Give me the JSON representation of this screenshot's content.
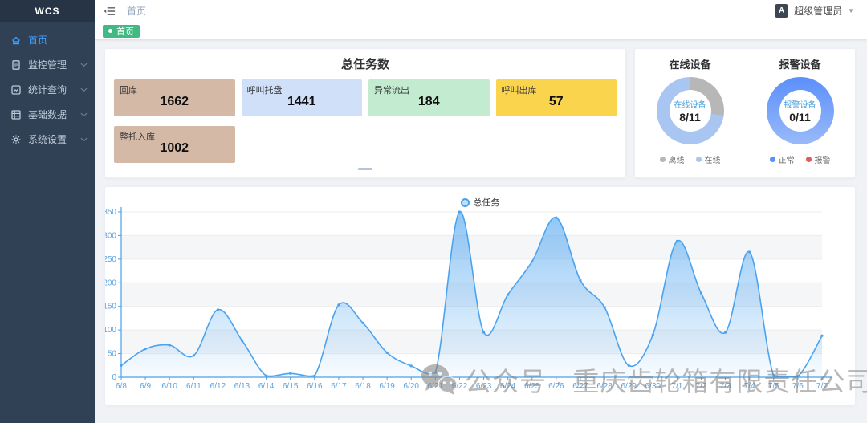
{
  "sidebar": {
    "logo": "WCS",
    "items": [
      {
        "id": "home",
        "label": "首页",
        "icon": "home-icon",
        "active": true,
        "has_children": false
      },
      {
        "id": "monitoring",
        "label": "监控管理",
        "icon": "monitor-icon",
        "active": false,
        "has_children": true
      },
      {
        "id": "statistics",
        "label": "统计查询",
        "icon": "stats-icon",
        "active": false,
        "has_children": true
      },
      {
        "id": "base-data",
        "label": "基础数据",
        "icon": "database-icon",
        "active": false,
        "has_children": true
      },
      {
        "id": "system-settings",
        "label": "系统设置",
        "icon": "settings-icon",
        "active": false,
        "has_children": true
      }
    ]
  },
  "header": {
    "breadcrumb": "首页",
    "user": "超级管理员",
    "avatar_letter": "A"
  },
  "tags": [
    {
      "label": "首页",
      "active": true,
      "color": "#42b983"
    }
  ],
  "tasks_card": {
    "title": "总任务数",
    "stats": [
      {
        "id": "return-storage",
        "label": "回库",
        "value": "1662",
        "bg": "#d5b9a7"
      },
      {
        "id": "call-pallet",
        "label": "呼叫托盘",
        "value": "1441",
        "bg": "#cfe0f8"
      },
      {
        "id": "abnormal-outflow",
        "label": "异常流出",
        "value": "184",
        "bg": "#c3ebcf"
      },
      {
        "id": "call-outbound",
        "label": "呼叫出库",
        "value": "57",
        "bg": "#fbd44e"
      },
      {
        "id": "full-pallet-inbound",
        "label": "整托入库",
        "value": "1002",
        "bg": "#d5b9a7"
      }
    ]
  },
  "devices_card": {
    "donuts": [
      {
        "id": "online-devices",
        "title": "在线设备",
        "center_label": "在线设备",
        "center_value": "8/11",
        "segments": [
          {
            "label": "离线",
            "value": 3,
            "color": "#b7b7b7"
          },
          {
            "label": "在线",
            "value": 8,
            "color": "#a9c5f1"
          }
        ]
      },
      {
        "id": "alarm-devices",
        "title": "报警设备",
        "center_label": "报警设备",
        "center_value": "0/11",
        "segments": [
          {
            "label": "正常",
            "value": 11,
            "color": "#5b8ff9"
          },
          {
            "label": "报警",
            "value": 0,
            "color": "#e25b5b"
          }
        ]
      }
    ]
  },
  "chart_data": {
    "type": "area",
    "legend": "总任务",
    "x": [
      "6/8",
      "6/9",
      "6/10",
      "6/11",
      "6/12",
      "6/13",
      "6/14",
      "6/15",
      "6/16",
      "6/17",
      "6/18",
      "6/19",
      "6/20",
      "6/21",
      "6/22",
      "6/23",
      "6/24",
      "6/25",
      "6/26",
      "6/27",
      "6/28",
      "6/29",
      "6/30",
      "7/1",
      "7/2",
      "7/3",
      "7/4",
      "7/5",
      "7/6",
      "7/7"
    ],
    "values": [
      25,
      60,
      68,
      46,
      143,
      78,
      3,
      8,
      3,
      153,
      115,
      52,
      24,
      10,
      350,
      95,
      175,
      245,
      338,
      205,
      148,
      25,
      90,
      288,
      178,
      95,
      265,
      3,
      2,
      88
    ],
    "ylim": [
      0,
      350
    ],
    "ytick_interval": 50,
    "line_color": "#4aa3f0",
    "area_color": "#4aa3f0",
    "axis_color": "#4aa0e8",
    "tick_label_color": "#58a3e4",
    "grid": true,
    "legend_position": "top"
  },
  "watermark": {
    "text": "公众号 · 重庆齿轮箱有限责任公司",
    "icon": "wechat-icon"
  }
}
